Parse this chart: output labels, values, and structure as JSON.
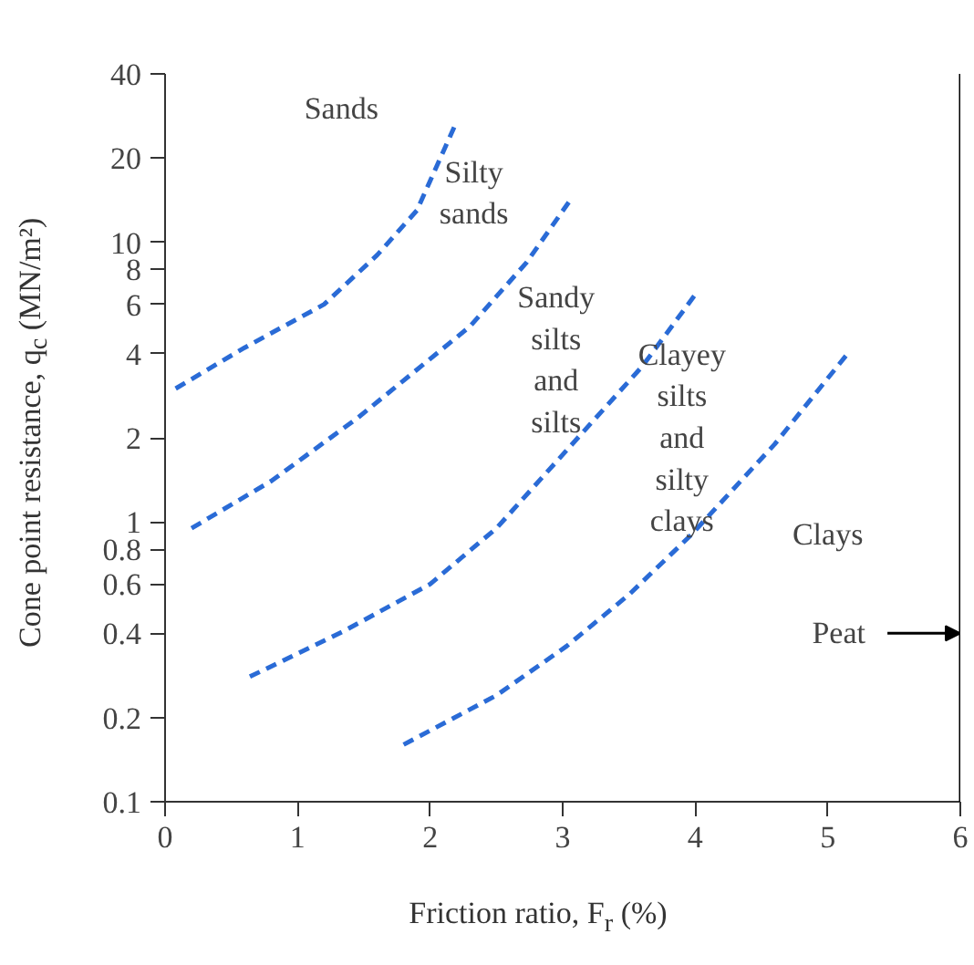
{
  "chart_data": {
    "type": "line",
    "xlabel": "Friction ratio, F$_{r}$ (%)",
    "ylabel": "Cone point resistance, q$_{c}$ (MN/m²)",
    "log": "y",
    "grid": false,
    "line_style": "dashed",
    "marker": "none",
    "xlim": [
      0,
      6
    ],
    "ylim": [
      0.1,
      40
    ],
    "xticks": [
      0,
      1,
      2,
      3,
      4,
      5,
      6
    ],
    "yticks": [
      0.1,
      0.2,
      0.4,
      0.6,
      0.8,
      1,
      2,
      4,
      6,
      8,
      10,
      20,
      40
    ],
    "series": [
      {
        "color": "#2a6bd6",
        "x": [
          0.08,
          0.6,
          1.2,
          1.6,
          1.9,
          2.2
        ],
        "values": [
          3,
          4.2,
          6,
          9,
          13,
          27
        ]
      },
      {
        "color": "#2a6bd6",
        "x": [
          0.2,
          0.8,
          1.45,
          2.3,
          2.73,
          3.05
        ],
        "values": [
          0.95,
          1.4,
          2.35,
          5,
          8.5,
          14
        ]
      },
      {
        "color": "#2a6bd6",
        "x": [
          0.64,
          1.36,
          2.0,
          2.5,
          3.23,
          3.6,
          4.0
        ],
        "values": [
          0.28,
          0.41,
          0.6,
          0.95,
          2.3,
          3.6,
          6.5
        ]
      },
      {
        "color": "#2a6bd6",
        "x": [
          1.8,
          2.5,
          3.03,
          3.5,
          3.97,
          4.6,
          5.15
        ],
        "values": [
          0.16,
          0.24,
          0.36,
          0.55,
          0.9,
          1.9,
          4
        ]
      }
    ],
    "ref_lines": [
      {
        "axis": "x",
        "value": 6,
        "color": "#000000"
      }
    ],
    "annotations": [
      "Sands",
      "Silty\nsands",
      "Sandy\nsilts\nand\nsilts",
      "Clayey\nsilts\nand\nsilty\nclays",
      "Clays",
      {
        "text": "Peat",
        "x": 6,
        "y": 0.4
      }
    ]
  }
}
